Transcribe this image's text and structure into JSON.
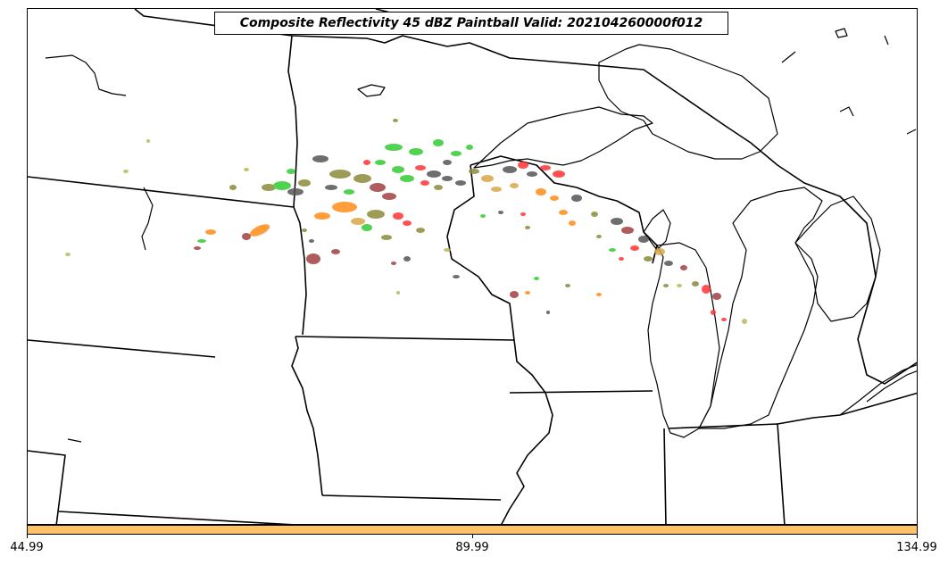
{
  "title": "Composite Reflectivity 45 dBZ Paintball Valid: 202104260000f012",
  "colorbar": {
    "color": "#ffc266",
    "ticks": [
      "44.99",
      "89.99",
      "134.99"
    ]
  },
  "map": {
    "region": "Upper Midwest / Great Lakes",
    "paintball_colors": [
      "#33cc33",
      "#ff3333",
      "#ff8c1a",
      "#8b8b3a",
      "#555555",
      "#a04040",
      "#d9a84a",
      "#b8b860"
    ]
  }
}
